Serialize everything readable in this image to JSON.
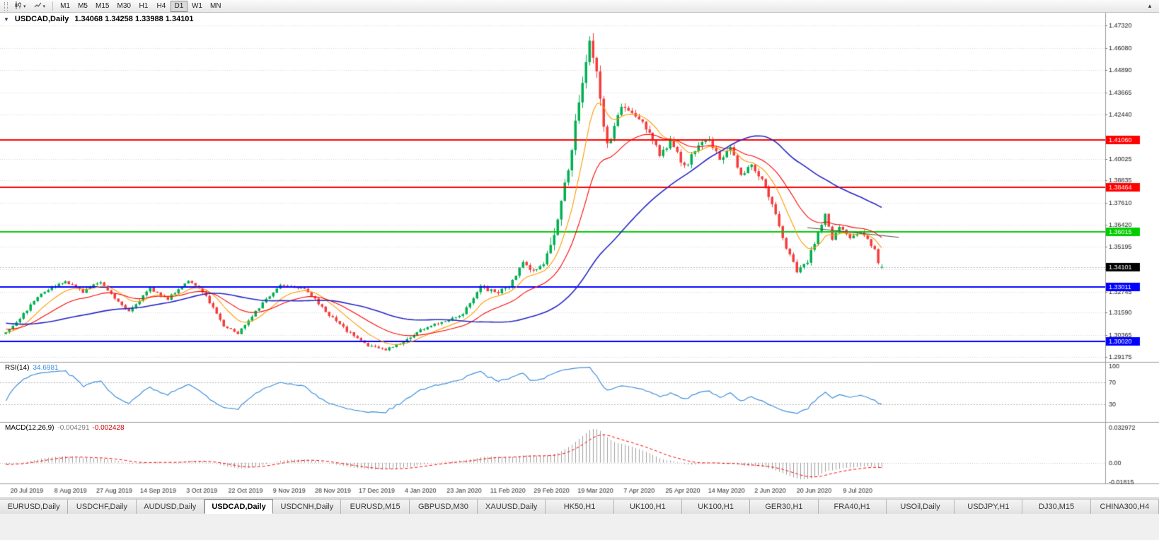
{
  "toolbar": {
    "timeframe_buttons": [
      "M1",
      "M5",
      "M15",
      "M30",
      "H1",
      "H4",
      "D1",
      "W1",
      "MN"
    ],
    "active_timeframe": "D1",
    "caret_glyph": "▾",
    "right_button_glyph": "▴"
  },
  "chart": {
    "header": {
      "collapse_glyph": "▼",
      "symbol": "USDCAD,Daily",
      "quote_line": "1.34068 1.34258 1.33988 1.34101"
    },
    "rsi_label": "RSI(14)",
    "rsi_value": "34.6981",
    "macd_label": "MACD(12,26,9)",
    "macd_value_main": "-0.004291",
    "macd_value_signal": "-0.002428"
  },
  "chart_data": {
    "type": "candlestick",
    "symbol": "USDCAD",
    "timeframe": "Daily",
    "quote": {
      "open": 1.34068,
      "high": 1.34258,
      "low": 1.33988,
      "close": 1.34101
    },
    "x_labels": [
      "20 Jul 2019",
      "8 Aug 2019",
      "27 Aug 2019",
      "14 Sep 2019",
      "3 Oct 2019",
      "22 Oct 2019",
      "9 Nov 2019",
      "28 Nov 2019",
      "17 Dec 2019",
      "4 Jan 2020",
      "23 Jan 2020",
      "11 Feb 2020",
      "29 Feb 2020",
      "19 Mar 2020",
      "7 Apr 2020",
      "25 Apr 2020",
      "14 May 2020",
      "2 Jun 2020",
      "20 Jun 2020",
      "9 Jul 2020"
    ],
    "y_ticks": [
      1.4732,
      1.4608,
      1.4489,
      1.43665,
      1.4244,
      1.40025,
      1.38835,
      1.3761,
      1.3642,
      1.35195,
      1.3397,
      1.32745,
      1.3159,
      1.30365,
      1.29175
    ],
    "y_range": [
      1.289,
      1.474
    ],
    "visible_bars": 250,
    "price_anchors": [
      [
        0,
        1.3055
      ],
      [
        4,
        1.313
      ],
      [
        10,
        1.327
      ],
      [
        17,
        1.333
      ],
      [
        22,
        1.3275
      ],
      [
        27,
        1.3332
      ],
      [
        31,
        1.324
      ],
      [
        35,
        1.317
      ],
      [
        41,
        1.329
      ],
      [
        46,
        1.3235
      ],
      [
        52,
        1.3338
      ],
      [
        57,
        1.325
      ],
      [
        62,
        1.309
      ],
      [
        66,
        1.3045
      ],
      [
        71,
        1.317
      ],
      [
        78,
        1.3312
      ],
      [
        85,
        1.3295
      ],
      [
        91,
        1.3165
      ],
      [
        97,
        1.306
      ],
      [
        103,
        1.298
      ],
      [
        108,
        1.2955
      ],
      [
        113,
        1.3002
      ],
      [
        118,
        1.3065
      ],
      [
        124,
        1.311
      ],
      [
        130,
        1.3155
      ],
      [
        135,
        1.3302
      ],
      [
        139,
        1.327
      ],
      [
        143,
        1.3298
      ],
      [
        147,
        1.3432
      ],
      [
        150,
        1.339
      ],
      [
        153,
        1.3422
      ],
      [
        157,
        1.365
      ],
      [
        160,
        1.3942
      ],
      [
        163,
        1.434
      ],
      [
        166,
        1.463
      ],
      [
        168,
        1.4452
      ],
      [
        171,
        1.4062
      ],
      [
        175,
        1.4292
      ],
      [
        179,
        1.4232
      ],
      [
        183,
        1.4152
      ],
      [
        186,
        1.4028
      ],
      [
        189,
        1.4092
      ],
      [
        193,
        1.3958
      ],
      [
        197,
        1.4068
      ],
      [
        200,
        1.4112
      ],
      [
        203,
        1.3988
      ],
      [
        206,
        1.4078
      ],
      [
        209,
        1.3908
      ],
      [
        212,
        1.3978
      ],
      [
        216,
        1.3848
      ],
      [
        219,
        1.3688
      ],
      [
        222,
        1.3508
      ],
      [
        225,
        1.3392
      ],
      [
        228,
        1.3445
      ],
      [
        231,
        1.3595
      ],
      [
        233,
        1.37
      ],
      [
        235,
        1.356
      ],
      [
        237,
        1.3628
      ],
      [
        240,
        1.357
      ],
      [
        243,
        1.3605
      ],
      [
        245,
        1.3558
      ],
      [
        247,
        1.3502
      ],
      [
        248,
        1.3435
      ],
      [
        249,
        1.3412
      ]
    ],
    "volatility": [
      [
        0,
        0.0016
      ],
      [
        135,
        0.0025
      ],
      [
        155,
        0.0065
      ],
      [
        172,
        0.0035
      ],
      [
        216,
        0.0028
      ],
      [
        232,
        0.0018
      ]
    ],
    "peak": {
      "index": 166,
      "high": 1.4668
    },
    "hlines": [
      {
        "price": 1.4106,
        "color": "#ff0000",
        "label": "1.41060"
      },
      {
        "price": 1.38464,
        "color": "#ff0000",
        "label": "1.38464"
      },
      {
        "price": 1.36015,
        "color": "#00cc00",
        "label": "1.36015"
      },
      {
        "price": 1.33011,
        "color": "#0000ff",
        "label": "1.33011"
      },
      {
        "price": 1.3002,
        "color": "#0000ff",
        "label": "1.30020"
      }
    ],
    "trendline": {
      "from": [
        228,
        1.3625
      ],
      "to": [
        254,
        1.3572
      ],
      "color": "#4a4a4a"
    },
    "current_price": {
      "value": 1.34101,
      "label": "1.34101",
      "box_color": "#000000",
      "text_color": "#ffffff"
    },
    "candle_up_color": "#00b050",
    "candle_down_color": "#f63b3b",
    "grid_color": "#d9d9d9",
    "moving_averages": [
      {
        "period": 10,
        "type": "ema",
        "color": "#ff9900",
        "width": 1.1
      },
      {
        "period": 24,
        "type": "ema",
        "color": "#ff0000",
        "width": 1.1
      },
      {
        "period": 55,
        "type": "sma",
        "color": "#2626c9",
        "width": 1.6
      }
    ],
    "rsi": {
      "period": 14,
      "current": 34.6981,
      "line_color": "#3f8fdd",
      "axis_labels": [
        "100",
        "70",
        "30"
      ],
      "axis_values": [
        100,
        70,
        30
      ],
      "level_lines": [
        70,
        30
      ],
      "range": [
        0,
        100
      ]
    },
    "macd": {
      "fast": 12,
      "slow": 26,
      "signal": 9,
      "current_macd": -0.004291,
      "current_signal": -0.002428,
      "axis_labels": [
        "0.032972",
        "0.00",
        "-0.01815"
      ],
      "axis_values": [
        0.032972,
        0,
        -0.01815
      ],
      "hist_color": "#a0a0a0",
      "signal_color": "#ff0000"
    }
  },
  "tabs": {
    "items": [
      "EURUSD,Daily",
      "USDCHF,Daily",
      "AUDUSD,Daily",
      "USDCAD,Daily",
      "USDCNH,Daily",
      "EURUSD,M15",
      "GBPUSD,M30",
      "XAUUSD,Daily",
      "HK50,H1",
      "UK100,H1",
      "UK100,H1",
      "GER30,H1",
      "FRA40,H1",
      "USOil,Daily",
      "USDJPY,H1",
      "DJ30,M15",
      "CHINA300,H4"
    ],
    "active": "USDCAD,Daily"
  }
}
